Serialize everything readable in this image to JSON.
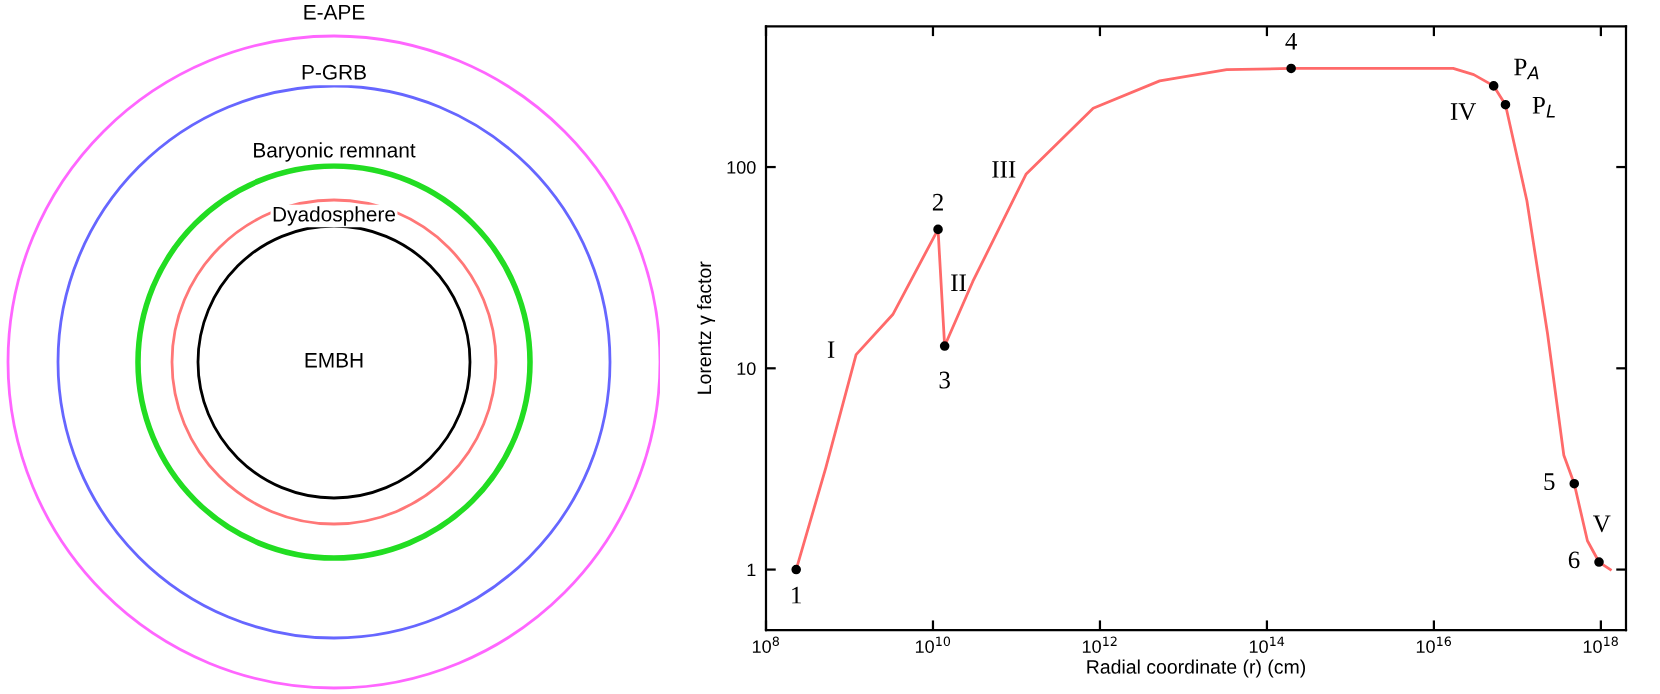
{
  "chart_data": [
    {
      "type": "other",
      "annotations": [
        "E-APE",
        "P-GRB",
        "Baryonic remnant",
        "Dyadosphere",
        "EMBH"
      ]
    },
    {
      "type": "line",
      "xlabel": "Radial coordinate (r) (cm)",
      "ylabel": "Lorentz γ factor",
      "log": "xy",
      "grid": false,
      "xlim": [
        100000000.0,
        2e+18
      ],
      "ylim": [
        0.5,
        500
      ],
      "xticks": [
        {
          "value": 100000000.0,
          "label": "10$^{8}$"
        },
        {
          "value": 10000000000.0,
          "label": "10$^{10}$"
        },
        {
          "value": 1000000000000.0,
          "label": "10$^{12}$"
        },
        {
          "value": 100000000000000.0,
          "label": "10$^{14}$"
        },
        {
          "value": 1e+16,
          "label": "10$^{16}$"
        },
        {
          "value": 1e+18,
          "label": "10$^{18}$"
        }
      ],
      "yticks": [
        1,
        10,
        100
      ],
      "series": [
        {
          "type": "line",
          "color": "#ff6a6a",
          "marker": "none",
          "line_style": "solid",
          "x": [
            230000000.0,
            520000000.0,
            1200000000.0,
            3300000000.0,
            11500000000.0,
            13800000000.0,
            30000000000.0,
            130000000000.0,
            830000000000.0,
            5200000000000.0,
            33000000000000.0,
            195000000000000.0,
            1.7e+16,
            3e+16,
            5.2e+16,
            7.2e+16,
            1.3e+17,
            2.3e+17,
            3.6e+17,
            4.8e+17,
            6.9e+17,
            9.5e+17,
            1.3e+18
          ],
          "values": [
            1.0,
            3.2,
            11.7,
            18.5,
            49,
            12.9,
            27,
            92,
            196,
            268,
            305,
            309,
            309,
            288,
            253,
            204,
            68,
            14.8,
            3.7,
            2.67,
            1.39,
            1.09,
            1.0
          ]
        },
        {
          "type": "scatter",
          "color": "#000000",
          "marker": "circle",
          "x": [
            230000000.0,
            11500000000.0,
            13800000000.0,
            195000000000000.0,
            5.2e+16,
            7.2e+16,
            4.8e+17,
            9.5e+17
          ],
          "values": [
            1.0,
            49,
            12.9,
            309,
            253,
            204,
            2.67,
            1.09
          ]
        }
      ],
      "annotations": [
        {
          "text": "1",
          "x": 230000000.0,
          "y": 1.0
        },
        {
          "text": "2",
          "x": 11500000000.0,
          "y": 49
        },
        {
          "text": "3",
          "x": 13800000000.0,
          "y": 12.9
        },
        {
          "text": "4",
          "x": 195000000000000.0,
          "y": 309
        },
        {
          "text": "P$_{A}$",
          "x": 5.2e+16,
          "y": 253
        },
        {
          "text": "P$_{L}$",
          "x": 7.2e+16,
          "y": 204
        },
        {
          "text": "IV",
          "x": 5.2e+16,
          "y": 253
        },
        {
          "text": "5",
          "x": 4.8e+17,
          "y": 2.67
        },
        {
          "text": "6",
          "x": 9.5e+17,
          "y": 1.09
        },
        {
          "text": "V",
          "x": 9.5e+17,
          "y": 1.09
        },
        {
          "text": "I",
          "x": 1200000000.0,
          "y": 11.7
        },
        {
          "text": "II",
          "x": 13800000000.0,
          "y": 12.9
        },
        {
          "text": "III",
          "x": 130000000000.0,
          "y": 92
        }
      ]
    }
  ]
}
